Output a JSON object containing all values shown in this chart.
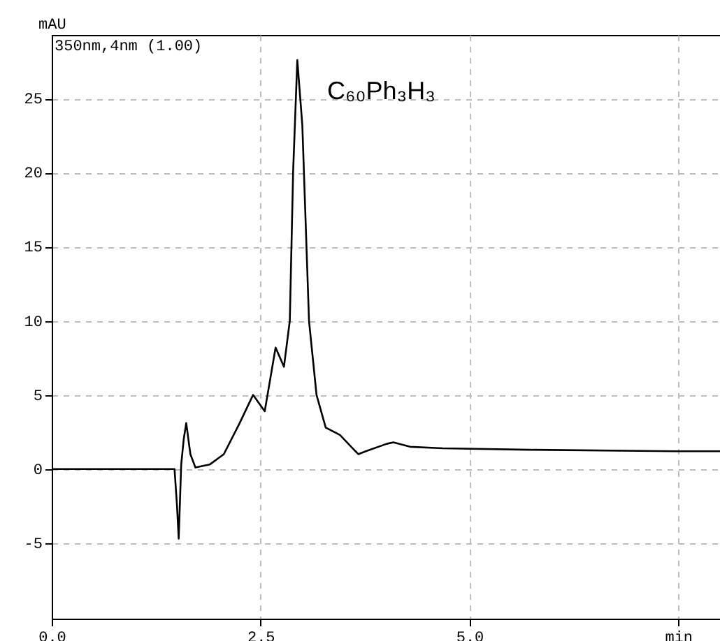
{
  "chart_data": {
    "type": "line",
    "ylabel": "mAU",
    "annotations": [
      "350nm,4nm (1.00)",
      "C₆₀Ph₃H₃"
    ],
    "x": [
      0,
      1.47,
      1.5,
      1.52,
      1.55,
      1.58,
      1.61,
      1.66,
      1.72,
      1.89,
      2.06,
      2.25,
      2.41,
      2.55,
      2.68,
      2.78,
      2.85,
      2.89,
      2.94,
      3.0,
      3.08,
      3.17,
      3.28,
      3.45,
      3.67,
      3.76,
      4.01,
      4.09,
      4.29,
      4.68,
      5.71,
      7.46,
      8.0
    ],
    "series": [
      {
        "color": "#000000",
        "values": [
          0,
          0,
          -2.5,
          -4.7,
          0.3,
          2.0,
          3.1,
          1.0,
          0.1,
          0.3,
          1.0,
          3.1,
          5.0,
          3.9,
          8.2,
          6.9,
          10.0,
          20.1,
          27.6,
          23.2,
          10.0,
          5.0,
          2.8,
          2.3,
          1.0,
          1.2,
          1.7,
          1.8,
          1.5,
          1.4,
          1.3,
          1.2,
          1.2
        ]
      }
    ],
    "xlim": [
      0,
      8.0
    ],
    "ylim": [
      -10.1,
      29.3
    ],
    "xticks": [
      {
        "value": 0,
        "label": "0.0"
      },
      {
        "value": 2.5,
        "label": "2.5"
      },
      {
        "value": 5,
        "label": "5.0"
      },
      {
        "value": 7.5,
        "label": "min"
      }
    ],
    "yticks": [
      -5,
      0,
      5,
      10,
      15,
      20,
      25
    ],
    "grid": true,
    "line_style": "solid",
    "marker": "none"
  }
}
